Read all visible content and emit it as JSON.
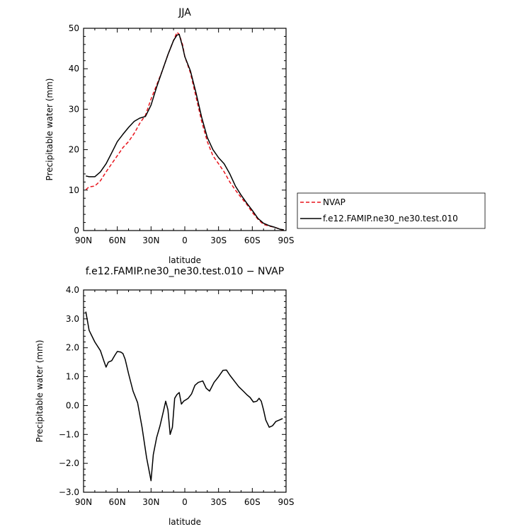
{
  "chart_data": [
    {
      "type": "line",
      "title": "JJA",
      "xlabel": "latitude",
      "ylabel": "Precipitable water (mm)",
      "xlim": [
        -90,
        90
      ],
      "ylim": [
        0,
        50
      ],
      "xticks": [
        -90,
        -60,
        -30,
        0,
        30,
        60,
        90
      ],
      "xtick_labels": [
        "90N",
        "60N",
        "30N",
        "0",
        "30S",
        "60S",
        "90S"
      ],
      "yticks": [
        0,
        10,
        20,
        30,
        40,
        50
      ],
      "ytick_labels": [
        "0",
        "10",
        "20",
        "30",
        "40",
        "50"
      ],
      "legend_position": "right",
      "series": [
        {
          "name": "NVAP",
          "color": "#e8141c",
          "dash": "dashed",
          "x": [
            -88,
            -85,
            -80,
            -75,
            -70,
            -65,
            -60,
            -55,
            -50,
            -45,
            -40,
            -35,
            -30,
            -25,
            -20,
            -15,
            -10,
            -7,
            -5,
            -2,
            0,
            5,
            10,
            15,
            20,
            25,
            30,
            35,
            40,
            45,
            50,
            55,
            60,
            65,
            70,
            75,
            80,
            85,
            88
          ],
          "y": [
            10.1,
            10.8,
            11.0,
            12.3,
            14.5,
            16.5,
            18.5,
            20.5,
            22.0,
            24.0,
            26.5,
            28.5,
            32.5,
            36.0,
            39.5,
            43.5,
            47.0,
            49.0,
            48.5,
            46.0,
            43.0,
            39.0,
            33.0,
            27.0,
            22.0,
            18.5,
            16.5,
            14.5,
            12.0,
            10.0,
            8.2,
            6.5,
            4.5,
            2.8,
            1.5,
            1.1,
            0.8,
            0.3,
            0.1
          ]
        },
        {
          "name": "f.e12.FAMIP.ne30_ne30.test.010",
          "color": "#000000",
          "dash": "solid",
          "x": [
            -88,
            -85,
            -80,
            -75,
            -70,
            -65,
            -60,
            -55,
            -50,
            -45,
            -40,
            -35,
            -30,
            -25,
            -20,
            -15,
            -10,
            -7,
            -5,
            -2,
            0,
            5,
            10,
            15,
            20,
            25,
            30,
            35,
            40,
            45,
            50,
            55,
            60,
            65,
            70,
            75,
            80,
            85,
            88
          ],
          "y": [
            13.5,
            13.3,
            13.3,
            14.5,
            16.5,
            19.2,
            22.0,
            23.8,
            25.5,
            27.0,
            27.8,
            28.2,
            31.0,
            35.5,
            39.5,
            43.5,
            47.0,
            48.3,
            48.5,
            45.5,
            43.0,
            39.5,
            34.0,
            28.0,
            23.0,
            20.0,
            18.0,
            16.5,
            14.0,
            11.0,
            8.8,
            6.8,
            5.0,
            3.0,
            1.8,
            1.2,
            0.8,
            0.3,
            0.2
          ]
        }
      ]
    },
    {
      "type": "line",
      "title": "f.e12.FAMIP.ne30_ne30.test.010 − NVAP",
      "xlabel": "latitude",
      "ylabel": "Precipitable water (mm)",
      "xlim": [
        -90,
        90
      ],
      "ylim": [
        -3.0,
        4.0
      ],
      "xticks": [
        -90,
        -60,
        -30,
        0,
        30,
        60,
        90
      ],
      "xtick_labels": [
        "90N",
        "60N",
        "30N",
        "0",
        "30S",
        "60S",
        "90S"
      ],
      "yticks": [
        -3.0,
        -2.0,
        -1.0,
        0.0,
        1.0,
        2.0,
        3.0,
        4.0
      ],
      "ytick_labels": [
        "−3.0",
        "−2.0",
        "−1.0",
        "0.0",
        "1.0",
        "2.0",
        "3.0",
        "4.0"
      ],
      "series": [
        {
          "color": "#000000",
          "dash": "solid",
          "x": [
            -88,
            -85,
            -80,
            -75,
            -72,
            -70,
            -68,
            -65,
            -62,
            -60,
            -57,
            -55,
            -53,
            -50,
            -46,
            -42,
            -38,
            -34,
            -30,
            -28,
            -25,
            -22,
            -19,
            -17,
            -15,
            -13,
            -11,
            -9,
            -7,
            -5,
            -3,
            -1,
            1,
            3,
            6,
            9,
            12,
            16,
            19,
            22,
            26,
            30,
            34,
            37,
            40,
            44,
            48,
            52,
            55,
            58,
            61,
            64,
            66,
            68,
            70,
            72,
            75,
            78,
            81,
            84,
            87
          ],
          "y": [
            3.25,
            2.6,
            2.2,
            1.9,
            1.55,
            1.33,
            1.5,
            1.55,
            1.75,
            1.87,
            1.85,
            1.8,
            1.6,
            1.1,
            0.5,
            0.1,
            -0.75,
            -1.8,
            -2.6,
            -1.7,
            -1.1,
            -0.7,
            -0.2,
            0.15,
            -0.15,
            -1.0,
            -0.75,
            0.25,
            0.38,
            0.45,
            0.05,
            0.15,
            0.2,
            0.25,
            0.4,
            0.7,
            0.8,
            0.85,
            0.6,
            0.5,
            0.8,
            1.0,
            1.22,
            1.23,
            1.05,
            0.85,
            0.65,
            0.5,
            0.38,
            0.28,
            0.12,
            0.15,
            0.25,
            0.15,
            -0.15,
            -0.5,
            -0.75,
            -0.7,
            -0.55,
            -0.5,
            -0.45
          ]
        }
      ]
    }
  ]
}
